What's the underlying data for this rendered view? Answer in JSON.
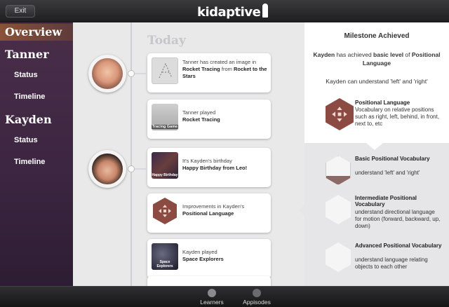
{
  "header": {
    "exit_label": "Exit",
    "logo_text": "kidaptive"
  },
  "sidebar": {
    "overview": "Overview",
    "children": [
      {
        "name": "Tanner",
        "status": "Status",
        "timeline": "Timeline"
      },
      {
        "name": "Kayden",
        "status": "Status",
        "timeline": "Timeline"
      }
    ]
  },
  "timeline": {
    "heading": "Today",
    "cards": [
      {
        "pre": "Tanner has created an image in ",
        "b1": "Rocket Tracing",
        "mid": " from ",
        "b2": "Rocket to the Stars"
      },
      {
        "pre": "Tanner played",
        "b1": "Rocket Tracing",
        "thumb_label": "Tracing Game"
      },
      {
        "pre": "It's Kayden's birthday",
        "b1": "Happy Birthday from Leo!",
        "thumb_label": "Happy Birthday"
      },
      {
        "pre": "Improvements in Kayden's",
        "b1": "Positional Language"
      },
      {
        "pre": "Kayden played",
        "b1": "Space Explorers",
        "thumb_label": "Space Explorers"
      }
    ]
  },
  "milestone": {
    "title": "Milestone Achieved",
    "line1_name": "Kayden",
    "line1_mid": " has achieved ",
    "line1_level": "basic level",
    "line1_of": " of ",
    "line1_skill": "Positional Language",
    "line2": "Kayden can understand 'left' and 'right'",
    "skill_title": "Positional Language",
    "skill_desc": "Vocabulary on relative positions such as right, left, behind, in front, next to, etc",
    "levels": [
      {
        "title": "Basic Positional Vocabulary",
        "desc": "understand 'left' and 'right'"
      },
      {
        "title": "Intermediate Positional Vocabulary",
        "desc": "understand directional language for motion (forward, backward, up, down)"
      },
      {
        "title": "Advanced Positional Vocabulary",
        "desc": "understand language relating objects to each other"
      }
    ]
  },
  "bottom_tabs": [
    {
      "label": "Learners"
    },
    {
      "label": "Appisodes"
    }
  ],
  "colors": {
    "hex_brown": "#8b4b43",
    "sidebar_purple": "#3b2540",
    "overview_highlight": "#8a5238"
  }
}
